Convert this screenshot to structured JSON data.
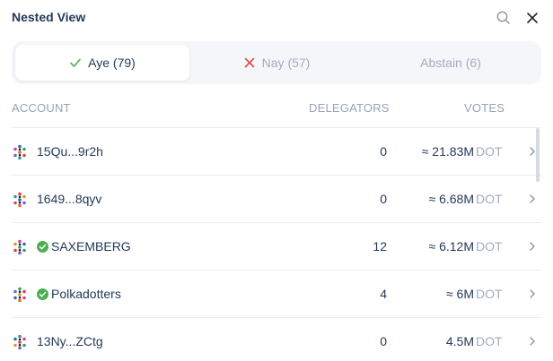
{
  "header": {
    "title": "Nested View"
  },
  "tabs": [
    {
      "label": "Aye (79)",
      "icon": "check-icon",
      "active": true
    },
    {
      "label": "Nay (57)",
      "icon": "x-icon",
      "active": false
    },
    {
      "label": "Abstain (6)",
      "icon": "",
      "active": false
    }
  ],
  "columns": {
    "account": "ACCOUNT",
    "delegators": "DELEGATORS",
    "votes": "VOTES"
  },
  "rows": [
    {
      "account": "15Qu...9r2h",
      "verified": false,
      "delegators": "0",
      "votes": "≈ 21.83M",
      "unit": "DOT"
    },
    {
      "account": "1649...8qyv",
      "verified": false,
      "delegators": "0",
      "votes": "≈ 6.68M",
      "unit": "DOT"
    },
    {
      "account": "SAXEMBERG",
      "verified": true,
      "delegators": "12",
      "votes": "≈ 6.12M",
      "unit": "DOT"
    },
    {
      "account": "Polkadotters",
      "verified": true,
      "delegators": "4",
      "votes": "≈ 6M",
      "unit": "DOT"
    },
    {
      "account": "13Ny...ZCtg",
      "verified": false,
      "delegators": "0",
      "votes": "4.5M",
      "unit": "DOT"
    }
  ],
  "colors": {
    "check": "#4caf50",
    "x": "#e5484d",
    "text": "#243a57",
    "muted": "#a3acbb"
  }
}
